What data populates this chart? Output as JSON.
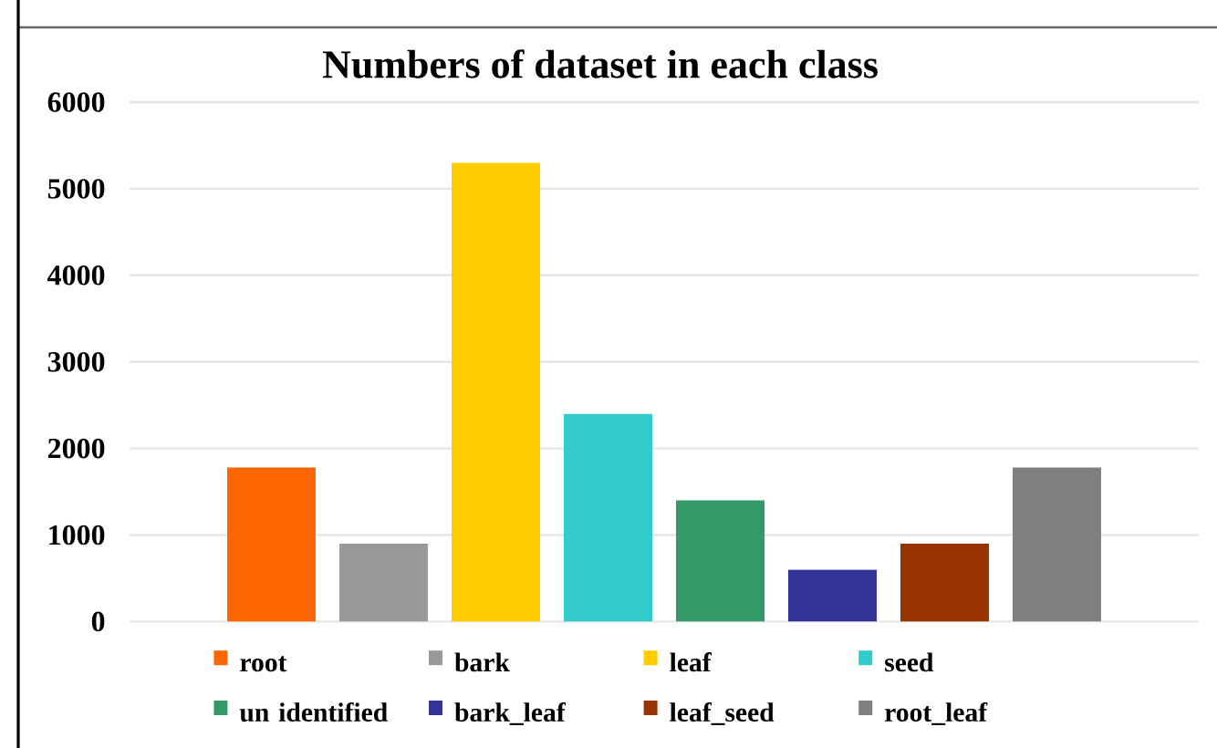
{
  "chart_data": {
    "type": "bar",
    "title": "Numbers of dataset in each class",
    "categories": [
      null
    ],
    "series": [
      {
        "name": "root",
        "color": "#ff6600",
        "values": [
          1780
        ]
      },
      {
        "name": "bark",
        "color": "#999999",
        "values": [
          900
        ]
      },
      {
        "name": "leaf",
        "color": "#ffcc00",
        "values": [
          5300
        ]
      },
      {
        "name": "seed",
        "color": "#33cccc",
        "values": [
          2400
        ]
      },
      {
        "name": "un identified",
        "color": "#339966",
        "values": [
          1400
        ]
      },
      {
        "name": "bark_leaf",
        "color": "#333399",
        "values": [
          600
        ]
      },
      {
        "name": "leaf_seed",
        "color": "#993300",
        "values": [
          900
        ]
      },
      {
        "name": "root_leaf",
        "color": "#808080",
        "values": [
          1780
        ]
      }
    ],
    "ylim": [
      0,
      6000
    ],
    "yticks": [
      0,
      1000,
      2000,
      3000,
      4000,
      5000,
      6000
    ],
    "grid": "y",
    "legend": "bottom"
  }
}
